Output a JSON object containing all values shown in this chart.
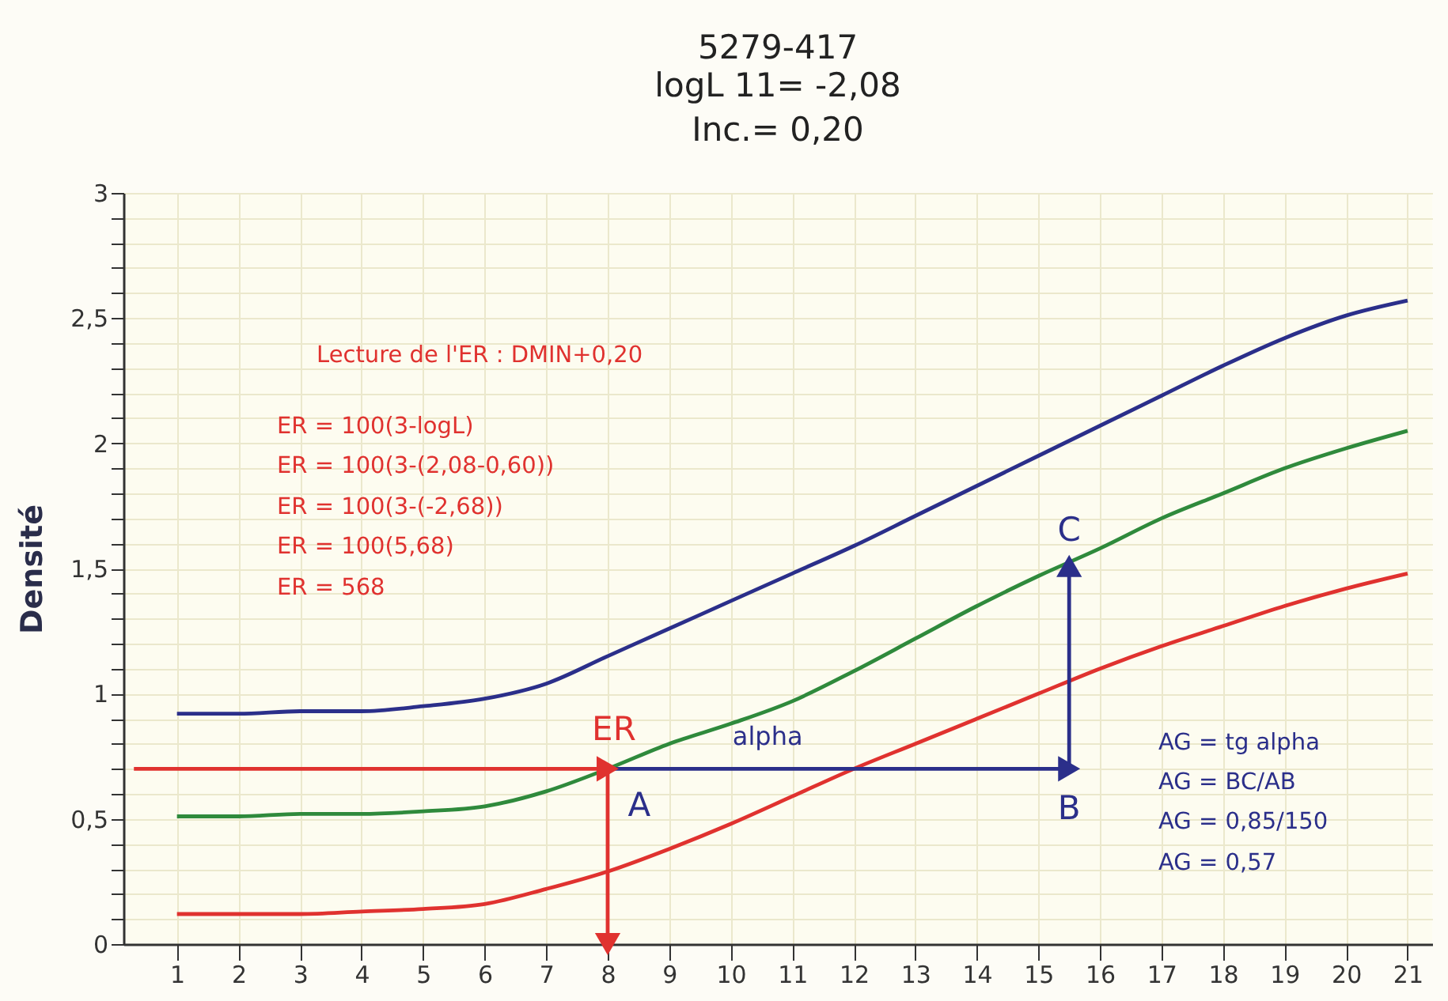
{
  "chart_data": {
    "type": "line",
    "title": "5279-417",
    "subtitle": "logL 11= -2,08\nInc.= 0,20",
    "ylabel": "Densité",
    "x": [
      1,
      2,
      3,
      4,
      5,
      6,
      7,
      8,
      9,
      10,
      11,
      12,
      13,
      14,
      15,
      16,
      17,
      18,
      19,
      20,
      21
    ],
    "series": [
      {
        "color": "#2b2f8a",
        "values": [
          0.92,
          0.92,
          0.93,
          0.93,
          0.95,
          0.98,
          1.04,
          1.15,
          1.26,
          1.37,
          1.48,
          1.59,
          1.71,
          1.83,
          1.95,
          2.07,
          2.19,
          2.31,
          2.42,
          2.51,
          2.57
        ]
      },
      {
        "color": "#2f8a3c",
        "values": [
          0.51,
          0.51,
          0.52,
          0.52,
          0.53,
          0.55,
          0.61,
          0.7,
          0.8,
          0.88,
          0.97,
          1.09,
          1.22,
          1.35,
          1.47,
          1.58,
          1.7,
          1.8,
          1.9,
          1.98,
          2.05
        ]
      },
      {
        "color": "#e0322f",
        "values": [
          0.12,
          0.12,
          0.12,
          0.13,
          0.14,
          0.16,
          0.22,
          0.29,
          0.38,
          0.48,
          0.59,
          0.7,
          0.8,
          0.9,
          1.0,
          1.1,
          1.19,
          1.27,
          1.35,
          1.42,
          1.48
        ]
      },
      {
        "type": "line",
        "color": "#e0322f",
        "marker": "triangle",
        "x": [
          0.3,
          8
        ],
        "values": [
          0.7,
          0.7
        ]
      },
      {
        "type": "line",
        "color": "#e0322f",
        "marker": "triangle",
        "x": [
          8,
          8
        ],
        "values": [
          0.7,
          0
        ]
      },
      {
        "type": "line",
        "color": "#2b2f8a",
        "marker": "triangle",
        "x": [
          8,
          15.5
        ],
        "values": [
          0.7,
          0.7
        ]
      },
      {
        "type": "line",
        "color": "#2b2f8a",
        "marker": "triangle",
        "x": [
          15.5,
          15.5
        ],
        "values": [
          0.7,
          1.51
        ]
      }
    ],
    "annotations": [
      {
        "text": "ER",
        "x": 8,
        "y": 0.7
      },
      {
        "text": "A",
        "x": 8,
        "y": 0.7
      },
      {
        "text": "alpha",
        "x": 10.6,
        "y": 0.7
      },
      {
        "text": "B",
        "x": 15.5,
        "y": 0.7
      },
      {
        "text": "C",
        "x": 15.5,
        "y": 1.51
      },
      "Lecture de l'ER : DMIN+0,20",
      "ER = 100(3-logL)",
      "ER = 100(3-(2,08-0,60))",
      "ER = 100(3-(-2,68))",
      "ER = 100(5,68)",
      "ER = 568",
      "AG = tg alpha",
      "AG = BC/AB",
      "AG = 0,85/150",
      "AG = 0,57"
    ],
    "xlim": [
      0.13,
      21.4
    ],
    "ylim": [
      0,
      3
    ],
    "xticks": [
      1,
      2,
      3,
      4,
      5,
      6,
      7,
      8,
      9,
      10,
      11,
      12,
      13,
      14,
      15,
      16,
      17,
      18,
      19,
      20,
      21
    ],
    "yticks": [
      0,
      {
        "value": 0.1,
        "label": null
      },
      {
        "value": 0.2,
        "label": null
      },
      {
        "value": 0.3,
        "label": null
      },
      {
        "value": 0.4,
        "label": null
      },
      {
        "value": 0.5,
        "label": "0,5"
      },
      {
        "value": 0.6,
        "label": null
      },
      {
        "value": 0.7,
        "label": null
      },
      {
        "value": 0.8,
        "label": null
      },
      {
        "value": 0.9,
        "label": null
      },
      1,
      {
        "value": 1.1,
        "label": null
      },
      {
        "value": 1.2,
        "label": null
      },
      {
        "value": 1.3,
        "label": null
      },
      {
        "value": 1.4,
        "label": null
      },
      {
        "value": 1.5,
        "label": "1,5"
      },
      {
        "value": 1.6,
        "label": null
      },
      {
        "value": 1.7,
        "label": null
      },
      {
        "value": 1.8,
        "label": null
      },
      {
        "value": 1.9,
        "label": null
      },
      2,
      {
        "value": 2.1,
        "label": null
      },
      {
        "value": 2.2,
        "label": null
      },
      {
        "value": 2.3,
        "label": null
      },
      {
        "value": 2.4,
        "label": null
      },
      {
        "value": 2.5,
        "label": "2,5"
      },
      {
        "value": 2.6,
        "label": null
      },
      {
        "value": 2.7,
        "label": null
      },
      {
        "value": 2.8,
        "label": null
      },
      {
        "value": 2.9,
        "label": null
      },
      3
    ],
    "grid": true
  }
}
